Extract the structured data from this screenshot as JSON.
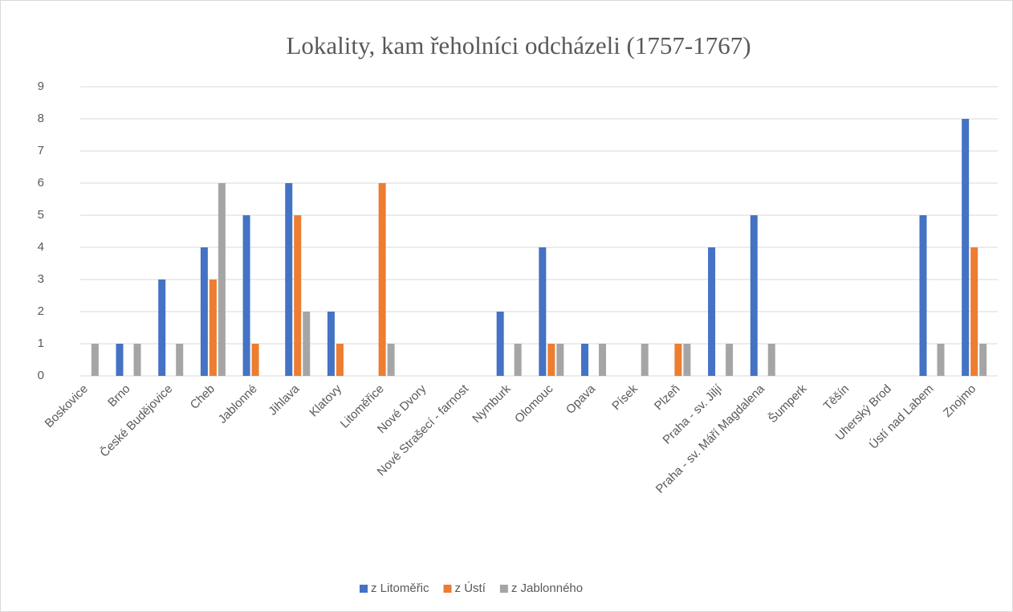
{
  "chart_data": {
    "type": "bar",
    "title": "Lokality, kam řeholníci odcházeli (1757-1767)",
    "categories": [
      "Boskovice",
      "Brno",
      "České Budějovice",
      "Cheb",
      "Jablonné",
      "Jihlava",
      "Klatovy",
      "Litoměřice",
      "Nové Dvory",
      "Nové Strašecí - farnost",
      "Nymburk",
      "Olomouc",
      "Opava",
      "Písek",
      "Plzeň",
      "Praha - sv. Jiljí",
      "Praha - sv. Máří Magdalena",
      "Šumperk",
      "Těšín",
      "Uherský Brod",
      "Ústí nad Labem",
      "Znojmo"
    ],
    "series": [
      {
        "name": "z Litoměřic",
        "color": "#4472c4",
        "values": [
          0,
          1,
          3,
          4,
          5,
          6,
          2,
          0,
          0,
          0,
          2,
          4,
          1,
          0,
          0,
          4,
          5,
          0,
          0,
          0,
          5,
          8
        ]
      },
      {
        "name": "z Ústí",
        "color": "#ed7d31",
        "values": [
          0,
          0,
          0,
          3,
          1,
          5,
          1,
          6,
          0,
          0,
          0,
          1,
          0,
          0,
          1,
          0,
          0,
          0,
          0,
          0,
          0,
          4
        ]
      },
      {
        "name": "z Jablonného",
        "color": "#a5a5a5",
        "values": [
          1,
          1,
          1,
          6,
          0,
          2,
          0,
          1,
          0,
          0,
          1,
          1,
          1,
          1,
          1,
          1,
          1,
          0,
          0,
          0,
          1,
          1
        ]
      }
    ],
    "ylim": [
      0,
      9
    ],
    "yticks": [
      0,
      1,
      2,
      3,
      4,
      5,
      6,
      7,
      8,
      9
    ],
    "grid": true,
    "legend": "bottom"
  }
}
